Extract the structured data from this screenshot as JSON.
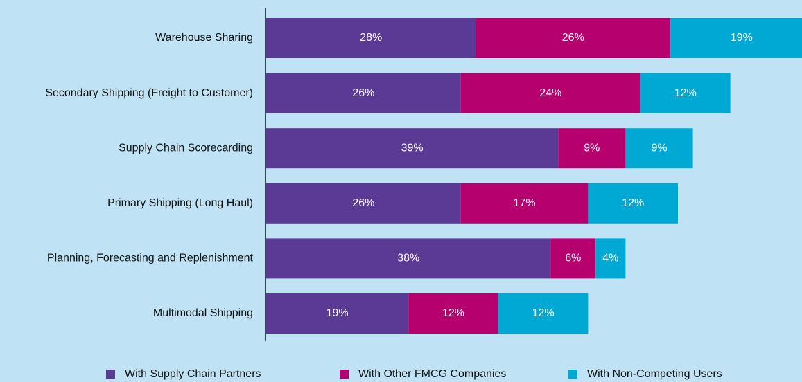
{
  "chart_data": {
    "type": "stacked_bar_horizontal",
    "categories": [
      "Warehouse Sharing",
      "Secondary Shipping (Freight to Customer)",
      "Supply Chain Scorecarding",
      "Primary Shipping (Long Haul)",
      "Planning, Forecasting and Replenishment",
      "Multimodal Shipping"
    ],
    "series": [
      {
        "name": "With Supply Chain Partners",
        "color": "#5b3a96",
        "values": [
          28,
          26,
          39,
          26,
          38,
          19
        ],
        "value_labels": [
          "28%",
          "26%",
          "39%",
          "26%",
          "38%",
          "19%"
        ]
      },
      {
        "name": "With Other FMCG Companies",
        "color": "#b5006e",
        "values": [
          26,
          24,
          9,
          17,
          6,
          12
        ],
        "value_labels": [
          "26%",
          "24%",
          "9%",
          "17%",
          "6%",
          "12%"
        ]
      },
      {
        "name": "With Non-Competing Users",
        "color": "#00a9d4",
        "values": [
          19,
          12,
          9,
          12,
          4,
          12
        ],
        "value_labels": [
          "19%",
          "12%",
          "9%",
          "12%",
          "4%",
          "12%"
        ]
      }
    ]
  }
}
